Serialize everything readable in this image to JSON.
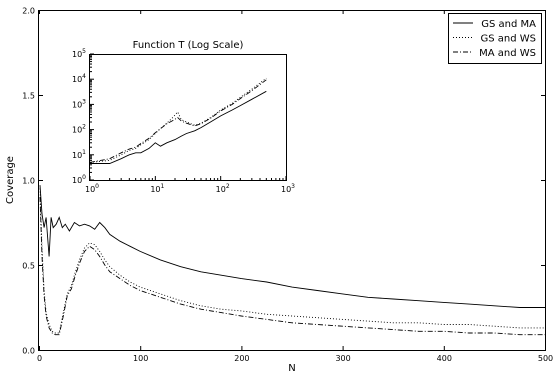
{
  "chart_data": [
    {
      "type": "line",
      "xlabel": "N",
      "ylabel": "Coverage",
      "xlim": [
        0,
        500
      ],
      "ylim": [
        0,
        2.0
      ],
      "x_ticks": [
        0,
        100,
        200,
        300,
        400,
        500
      ],
      "x_tick_labels": [
        "0",
        "100",
        "200",
        "300",
        "400",
        "500"
      ],
      "y_ticks": [
        0,
        0.5,
        1.0,
        1.5,
        2.0
      ],
      "y_tick_labels": [
        "0.0",
        "0.5",
        "1.0",
        "1.5",
        "2.0"
      ],
      "grid": false,
      "legend_position": "top-right",
      "series": [
        {
          "name": "GS and MA",
          "line_style": "solid",
          "x": [
            1,
            3,
            5,
            7,
            10,
            12,
            14,
            17,
            20,
            23,
            26,
            30,
            35,
            40,
            45,
            50,
            55,
            60,
            65,
            70,
            80,
            90,
            100,
            120,
            140,
            160,
            180,
            200,
            225,
            250,
            275,
            300,
            325,
            350,
            375,
            400,
            425,
            450,
            475,
            500
          ],
          "y": [
            0.97,
            0.8,
            0.72,
            0.78,
            0.55,
            0.78,
            0.72,
            0.74,
            0.78,
            0.72,
            0.74,
            0.7,
            0.75,
            0.73,
            0.74,
            0.73,
            0.71,
            0.75,
            0.72,
            0.68,
            0.64,
            0.61,
            0.58,
            0.53,
            0.49,
            0.46,
            0.44,
            0.42,
            0.4,
            0.37,
            0.35,
            0.33,
            0.31,
            0.3,
            0.29,
            0.28,
            0.27,
            0.26,
            0.25,
            0.25
          ]
        },
        {
          "name": "GS and WS",
          "line_style": "dotted",
          "x": [
            1,
            3,
            5,
            7,
            10,
            13,
            16,
            20,
            24,
            28,
            32,
            36,
            40,
            45,
            50,
            55,
            60,
            65,
            70,
            80,
            90,
            100,
            120,
            140,
            160,
            180,
            200,
            225,
            250,
            275,
            300,
            325,
            350,
            375,
            400,
            425,
            450,
            475,
            500
          ],
          "y": [
            0.95,
            0.6,
            0.35,
            0.22,
            0.15,
            0.11,
            0.1,
            0.1,
            0.22,
            0.33,
            0.38,
            0.46,
            0.53,
            0.6,
            0.63,
            0.62,
            0.58,
            0.53,
            0.49,
            0.44,
            0.4,
            0.37,
            0.33,
            0.29,
            0.26,
            0.24,
            0.23,
            0.21,
            0.2,
            0.19,
            0.18,
            0.17,
            0.16,
            0.16,
            0.15,
            0.15,
            0.14,
            0.13,
            0.13
          ]
        },
        {
          "name": "MA and WS",
          "line_style": "dashdot",
          "x": [
            1,
            3,
            5,
            7,
            10,
            13,
            16,
            20,
            24,
            28,
            32,
            36,
            40,
            45,
            50,
            55,
            60,
            65,
            70,
            80,
            90,
            100,
            120,
            140,
            160,
            180,
            200,
            225,
            250,
            275,
            300,
            325,
            350,
            375,
            400,
            425,
            450,
            475,
            500
          ],
          "y": [
            0.9,
            0.55,
            0.32,
            0.2,
            0.13,
            0.1,
            0.09,
            0.09,
            0.2,
            0.32,
            0.36,
            0.44,
            0.51,
            0.58,
            0.61,
            0.59,
            0.55,
            0.5,
            0.46,
            0.42,
            0.38,
            0.35,
            0.31,
            0.27,
            0.24,
            0.22,
            0.2,
            0.18,
            0.16,
            0.15,
            0.14,
            0.13,
            0.12,
            0.11,
            0.11,
            0.1,
            0.1,
            0.09,
            0.09
          ]
        }
      ]
    },
    {
      "type": "line",
      "title": "Function T (Log Scale)",
      "log_scale": true,
      "xlim": [
        1,
        1000
      ],
      "ylim": [
        1,
        100000
      ],
      "x_ticks": [
        1,
        10,
        100,
        1000
      ],
      "x_tick_labels": [
        "10^0",
        "10^1",
        "10^2",
        "10^3"
      ],
      "y_ticks": [
        1,
        10,
        100,
        1000,
        10000,
        100000
      ],
      "y_tick_labels": [
        "10^0",
        "10^1",
        "10^2",
        "10^3",
        "10^4",
        "10^5"
      ],
      "series": [
        {
          "name": "GS and MA",
          "line_style": "solid",
          "x": [
            1,
            2,
            3,
            4,
            5,
            6,
            8,
            10,
            12,
            15,
            20,
            25,
            30,
            40,
            50,
            70,
            100,
            150,
            200,
            300,
            500
          ],
          "y": [
            4.5,
            4.5,
            7,
            10,
            12,
            12,
            18,
            30,
            22,
            30,
            40,
            55,
            70,
            90,
            120,
            200,
            350,
            600,
            900,
            1600,
            3300
          ]
        },
        {
          "name": "GS and WS",
          "line_style": "dotted",
          "x": [
            1,
            2,
            3,
            4,
            5,
            6,
            8,
            10,
            12,
            15,
            18,
            22,
            25,
            30,
            40,
            50,
            70,
            100,
            150,
            200,
            300,
            500
          ],
          "y": [
            5,
            6,
            10,
            15,
            18,
            25,
            40,
            70,
            110,
            180,
            280,
            500,
            250,
            200,
            150,
            180,
            300,
            600,
            1100,
            1900,
            4000,
            11000
          ]
        },
        {
          "name": "MA and WS",
          "line_style": "dashdot",
          "x": [
            1,
            2,
            3,
            4,
            5,
            6,
            8,
            10,
            12,
            15,
            18,
            22,
            25,
            30,
            40,
            50,
            70,
            100,
            150,
            200,
            300,
            500
          ],
          "y": [
            5,
            7,
            12,
            17,
            20,
            28,
            45,
            75,
            110,
            170,
            220,
            300,
            220,
            180,
            140,
            170,
            280,
            550,
            1000,
            1700,
            3500,
            9500
          ]
        }
      ]
    }
  ]
}
